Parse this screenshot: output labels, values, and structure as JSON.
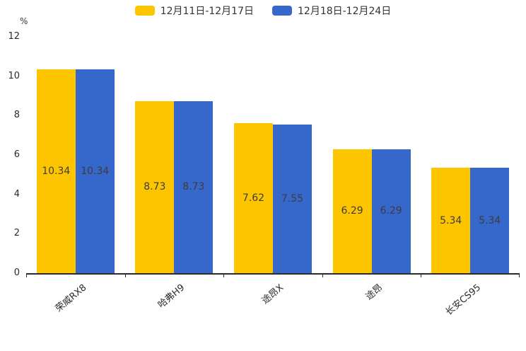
{
  "chart_data": {
    "type": "bar",
    "title": "",
    "unit_label": "%",
    "categories": [
      "荣威RX8",
      "哈弗H9",
      "途昂X",
      "途昂",
      "长安CS95"
    ],
    "series": [
      {
        "name": "12月11日-12月17日",
        "color": "#FDC500",
        "values": [
          10.34,
          8.73,
          7.62,
          6.29,
          5.34
        ]
      },
      {
        "name": "12月18日-12月24日",
        "color": "#3667CB",
        "values": [
          10.34,
          8.73,
          7.55,
          6.29,
          5.34
        ]
      }
    ],
    "ylim": [
      0,
      12
    ],
    "y_ticks": [
      0,
      2,
      4,
      6,
      8,
      10,
      12
    ],
    "grid": false,
    "legend_position": "top",
    "value_labels": "inside-center",
    "category_label_rotation_deg": -40,
    "colors": {
      "axis": "#2b2b2b",
      "text": "#333333",
      "value_label": "#3d3d3d"
    }
  }
}
